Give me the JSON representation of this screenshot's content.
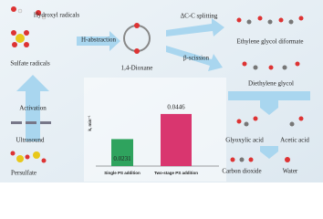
{
  "labels": {
    "hydroxyl": "Hydroxyl radicals",
    "sulfate": "Sulfate radicals",
    "activation": "Activation",
    "ultrasound": "Ultrasound",
    "persulfate": "Persulfate",
    "abstraction": "H-abstraction",
    "dioxane": "1,4-Dioxane",
    "splitting": "ΔC-C splitting",
    "scission": "β-scission",
    "diformate": "Ethylene glycol diformate",
    "diethylene": "Diethylene glycol",
    "glyoxylic": "Glyoxylic acid",
    "acetic": "Acetic acid",
    "co2": "Carbon dioxide",
    "water": "Water"
  },
  "chart_data": {
    "type": "bar",
    "y_label": "k, min⁻¹",
    "categories": [
      "Single PS addition",
      "Two-stage PS addition"
    ],
    "values": [
      0.0231,
      0.0446
    ],
    "colors": [
      "#2fa35e",
      "#d9366f"
    ]
  }
}
